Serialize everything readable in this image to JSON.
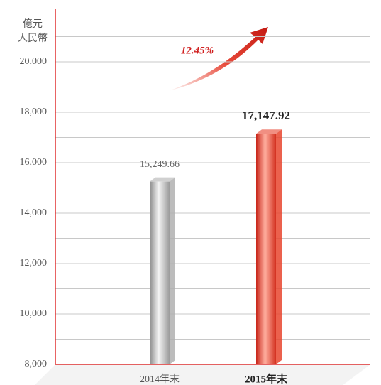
{
  "chart_data": {
    "type": "bar",
    "ylabel": [
      "億元",
      "人民幣"
    ],
    "categories": [
      "2014年末",
      "2015年末"
    ],
    "values": [
      15249.66,
      17147.92
    ],
    "value_labels": [
      "15,249.66",
      "17,147.92"
    ],
    "colors": [
      "#b0b0b0",
      "#e8452e"
    ],
    "annotation": "12.45%",
    "ylim": [
      8000,
      22000
    ],
    "yticks": [
      {
        "value": 8000,
        "label": "8,000"
      },
      {
        "value": 10000,
        "label": "10,000"
      },
      {
        "value": 12000,
        "label": "12,000"
      },
      {
        "value": 14000,
        "label": "14,000"
      },
      {
        "value": 16000,
        "label": "16,000"
      },
      {
        "value": 18000,
        "label": "18,000"
      },
      {
        "value": 20000,
        "label": "20,000"
      }
    ],
    "minor_yticks": [
      9000,
      11000,
      13000,
      15000,
      17000,
      19000,
      21000
    ],
    "grid": true,
    "axis_color": "#e03030"
  }
}
